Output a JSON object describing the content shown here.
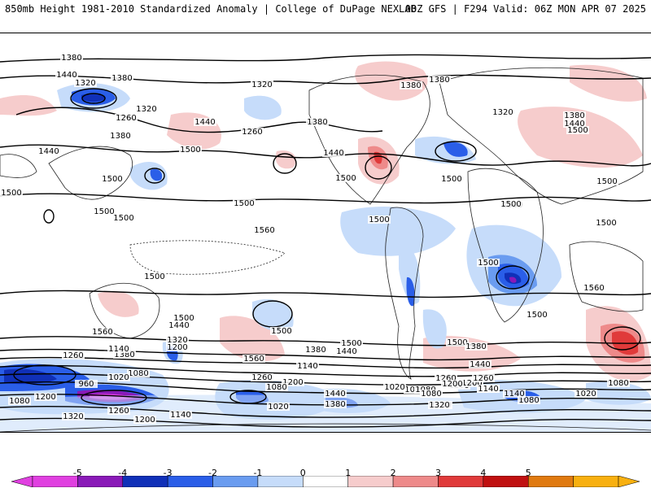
{
  "header": {
    "left": "850mb Height 1981-2010 Standardized Anomaly | College of DuPage NEXLAB",
    "right": "00Z GFS | F294 Valid: 06Z MON APR 07 2025"
  },
  "colorbar": {
    "ticks": [
      "-5",
      "-4",
      "-3",
      "-2",
      "-1",
      "0",
      "1",
      "2",
      "3",
      "4",
      "5"
    ],
    "colors": [
      "#e040e0",
      "#8a1ab8",
      "#1030b8",
      "#2a5ee8",
      "#6a9cf0",
      "#c6dcfa",
      "#ffffff",
      "#f6cccc",
      "#ee8a8a",
      "#e03a3a",
      "#c01010",
      "#e07a10",
      "#f8b010"
    ]
  },
  "contours": {
    "labels": [
      "1380",
      "1440",
      "1320",
      "1380",
      "1260",
      "1320",
      "1380",
      "1440",
      "1500",
      "1320",
      "1260",
      "1380",
      "1440",
      "1500",
      "1380",
      "1380",
      "1320",
      "1380",
      "1440",
      "1500",
      "1500",
      "1500",
      "1440",
      "1500",
      "1500",
      "1500",
      "1500",
      "1500",
      "1500",
      "1560",
      "1500",
      "1560",
      "1500",
      "1500",
      "1440",
      "1320",
      "1500",
      "1500",
      "1440",
      "1380",
      "1260",
      "1560",
      "1380",
      "1200",
      "1140",
      "1080",
      "1020",
      "960",
      "1080",
      "1200",
      "1260",
      "1140",
      "1320",
      "1200",
      "1260",
      "1200",
      "1140",
      "1080",
      "1020",
      "1080",
      "1140",
      "1080",
      "1200",
      "1140",
      "1020",
      "1080",
      "1080",
      "1140",
      "1440",
      "1380",
      "1260",
      "1320",
      "1200",
      "1200",
      "1260",
      "1140",
      "1080",
      "1020",
      "1440",
      "1380",
      "1500",
      "1500",
      "1500",
      "1560",
      "1500",
      "1500"
    ]
  }
}
